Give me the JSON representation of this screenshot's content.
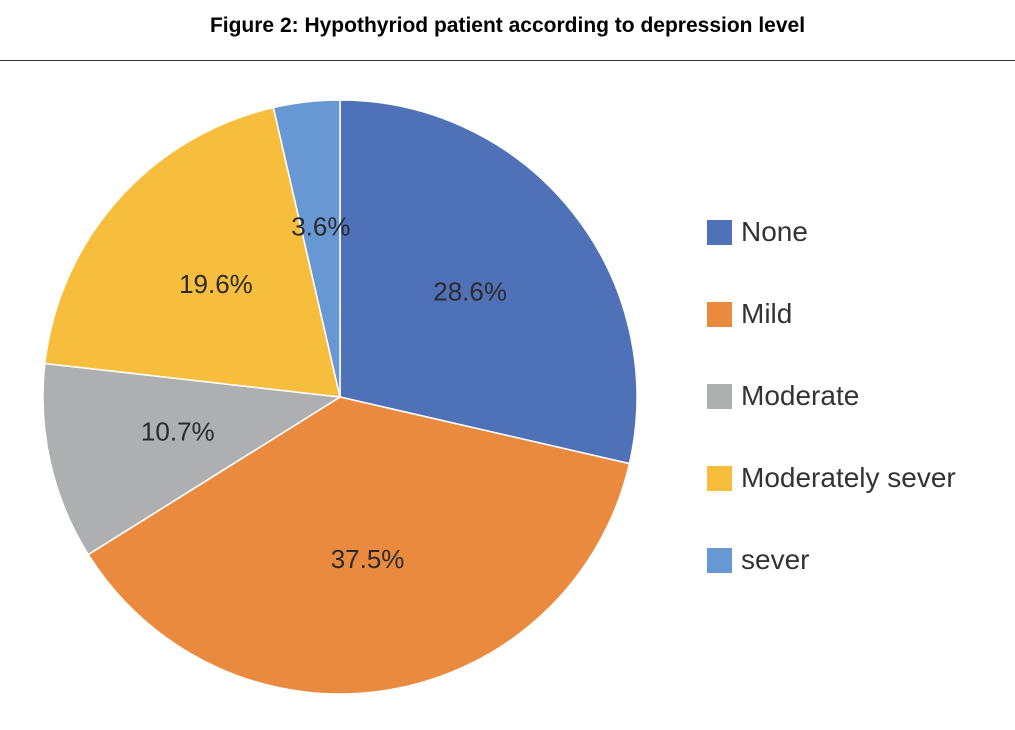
{
  "title": "Figure 2: Hypothyriod patient according to depression level",
  "chart_data": {
    "type": "pie",
    "title": "",
    "unit": "%",
    "start_angle_deg": 0,
    "direction": "clockwise",
    "legend_position": "right",
    "slices": [
      {
        "label": "None",
        "value": 28.6,
        "value_label": "28.6%",
        "color": "#4F71B8"
      },
      {
        "label": "Mild",
        "value": 37.5,
        "value_label": "37.5%",
        "color": "#E98A3F"
      },
      {
        "label": "Moderate",
        "value": 10.7,
        "value_label": "10.7%",
        "color": "#AEAFB1"
      },
      {
        "label": "Moderately sever",
        "value": 19.6,
        "value_label": "19.6%",
        "color": "#F7BD3C"
      },
      {
        "label": "sever",
        "value": 3.6,
        "value_label": "3.6%",
        "color": "#6898D3"
      }
    ]
  }
}
